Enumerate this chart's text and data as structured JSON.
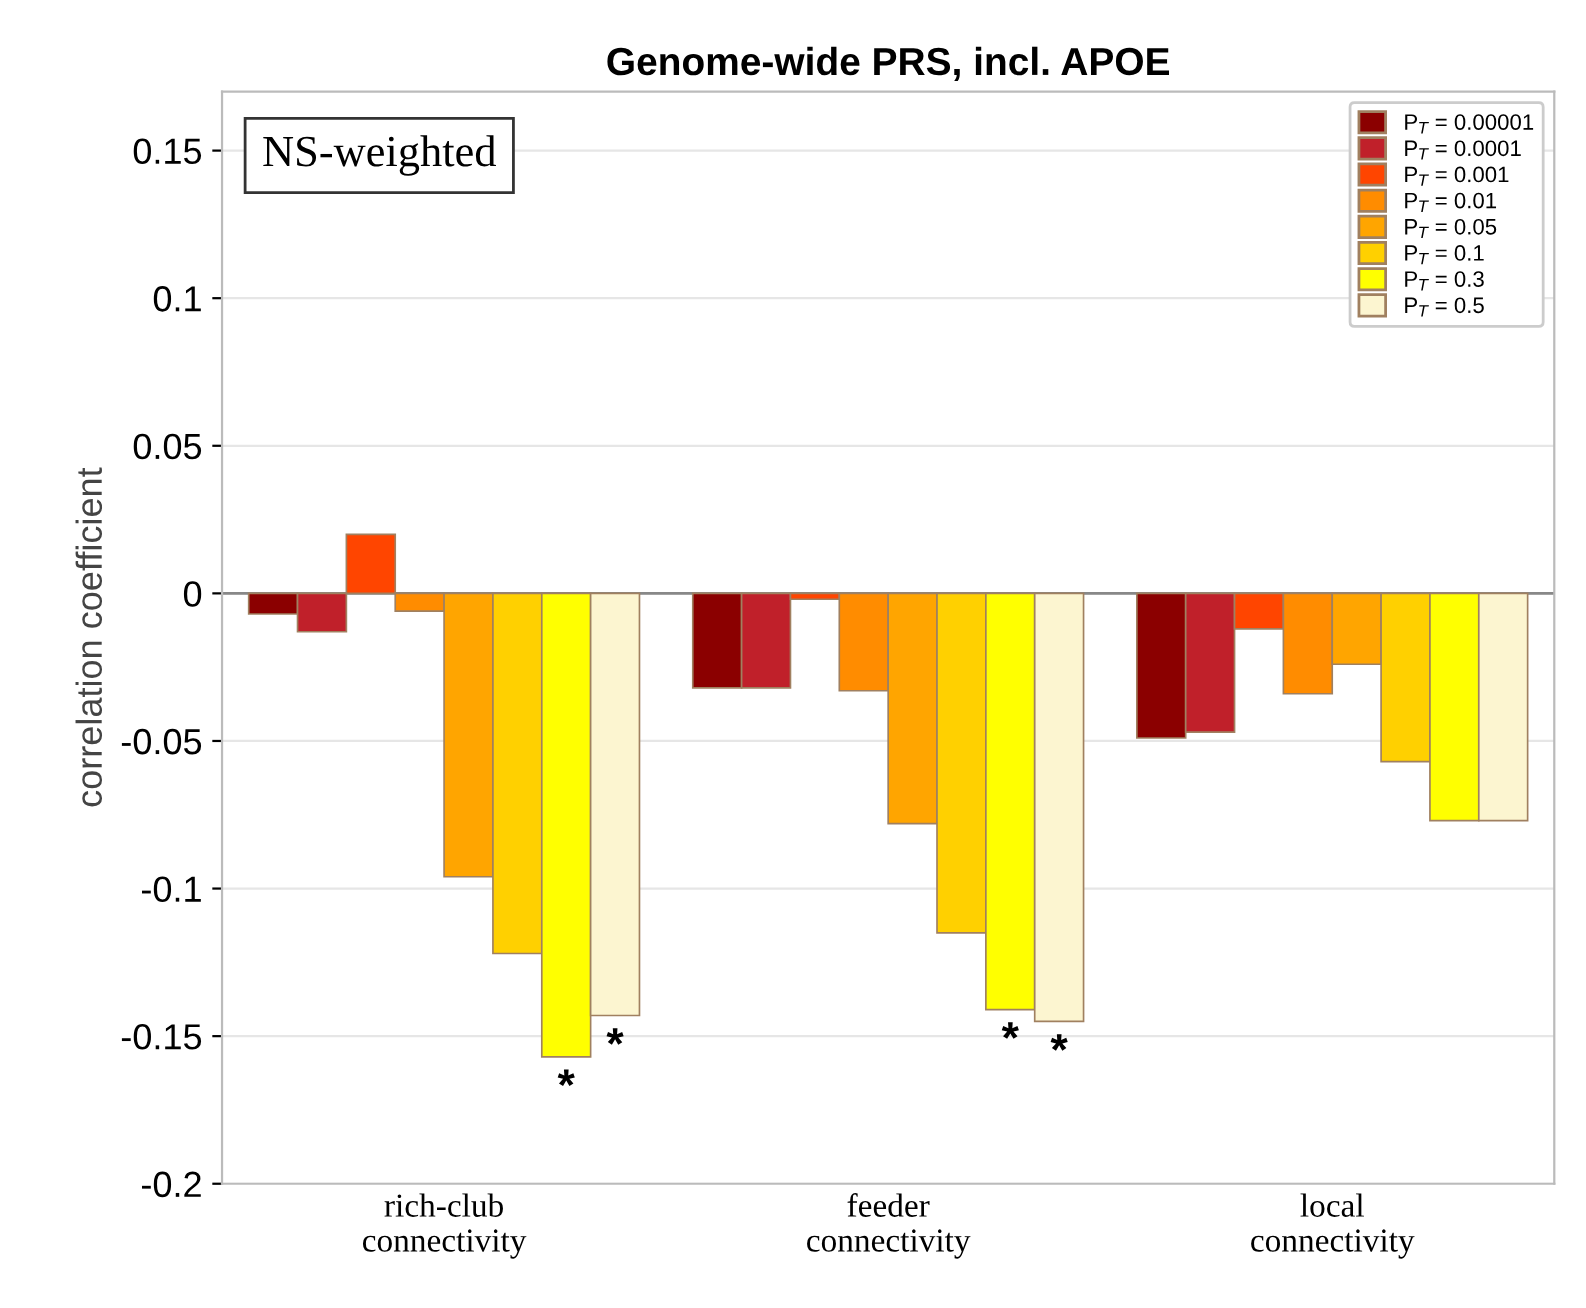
{
  "chart_data": {
    "type": "bar",
    "title": "Genome-wide PRS, incl. APOE",
    "ylabel": "correlation coefficient",
    "categories": [
      "rich-club\nconnectivity",
      "feeder\nconnectivity",
      "local\nconnectivity"
    ],
    "series": [
      {
        "name": "P$_{T}$ = 0.00001",
        "color": "#8b0000",
        "values": [
          -0.007,
          -0.032,
          -0.049
        ]
      },
      {
        "name": "P$_{T}$ = 0.0001",
        "color": "#c0202a",
        "values": [
          -0.013,
          -0.032,
          -0.047
        ]
      },
      {
        "name": "P$_{T}$ = 0.001",
        "color": "#ff4500",
        "values": [
          0.02,
          -0.002,
          -0.012
        ]
      },
      {
        "name": "P$_{T}$ = 0.01",
        "color": "#ff8c00",
        "values": [
          -0.006,
          -0.033,
          -0.034
        ]
      },
      {
        "name": "P$_{T}$ = 0.05",
        "color": "#ffa500",
        "values": [
          -0.096,
          -0.078,
          -0.024
        ]
      },
      {
        "name": "P$_{T}$ = 0.1",
        "color": "#ffd000",
        "values": [
          -0.122,
          -0.115,
          -0.057
        ]
      },
      {
        "name": "P$_{T}$ = 0.3",
        "color": "#ffff00",
        "values": [
          -0.157,
          -0.141,
          -0.077
        ],
        "value_labels": [
          "*",
          "*",
          null
        ]
      },
      {
        "name": "P$_{T}$ = 0.5",
        "color": "#fcf5d0",
        "values": [
          -0.143,
          -0.145,
          -0.077
        ],
        "value_labels": [
          "*",
          "*",
          null
        ]
      }
    ],
    "ylim": [
      -0.2,
      0.17
    ],
    "yticks": [
      -0.2,
      -0.15,
      -0.1,
      -0.05,
      0,
      0.05,
      0.1,
      0.15
    ],
    "grid": "y",
    "legend": "top right",
    "annotations": [
      "NS-weighted"
    ]
  }
}
